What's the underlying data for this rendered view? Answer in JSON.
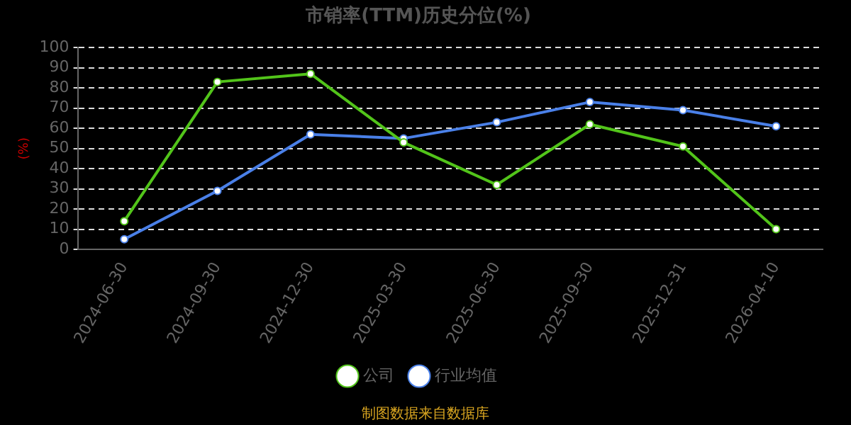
{
  "chart_data": {
    "type": "line",
    "title": "市销率(TTM)历史分位(%)",
    "ylabel": "(%)",
    "categories": [
      "2024-06-30",
      "2024-09-30",
      "2024-12-30",
      "2025-03-30",
      "2025-06-30",
      "2025-09-30",
      "2025-12-31",
      "2026-04-10"
    ],
    "series": [
      {
        "name": "公司",
        "color": "#52c41a",
        "values": [
          14,
          83,
          87,
          53,
          32,
          62,
          51,
          10
        ]
      },
      {
        "name": "行业均值",
        "color": "#4a80e8",
        "values": [
          5,
          29,
          57,
          55,
          63,
          73,
          69,
          61
        ]
      }
    ],
    "ylim": [
      0,
      100
    ],
    "yticks": [
      0,
      10,
      20,
      30,
      40,
      50,
      60,
      70,
      80,
      90,
      100
    ],
    "grid": "y",
    "legend": "bottom",
    "marker": "circle",
    "line_style": "solid",
    "annotations": [
      "制图数据来自数据库"
    ]
  }
}
